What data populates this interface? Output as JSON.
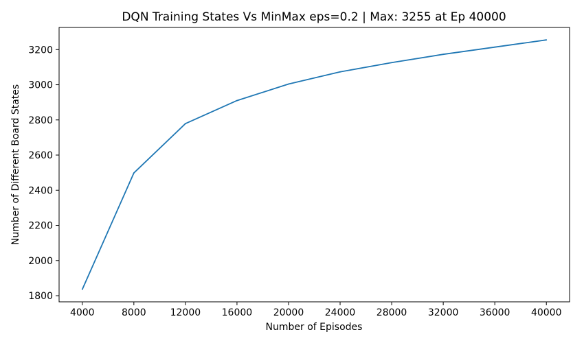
{
  "chart_data": {
    "type": "line",
    "title": "DQN Training States Vs MinMax eps=0.2 | Max: 3255 at Ep 40000",
    "xlabel": "Number of Episodes",
    "ylabel": "Number of Different Board States",
    "x": [
      4000,
      8000,
      12000,
      16000,
      20000,
      24000,
      28000,
      32000,
      36000,
      40000
    ],
    "series": [
      {
        "values": [
          1836,
          2498,
          2779,
          2910,
          3004,
          3073,
          3126,
          3173,
          3214,
          3255
        ],
        "color": "#1f77b4"
      }
    ],
    "xlim": [
      2200,
      41800
    ],
    "ylim": [
      1765,
      3326
    ],
    "x_ticks": [
      4000,
      8000,
      12000,
      16000,
      20000,
      24000,
      28000,
      32000,
      36000,
      40000
    ],
    "x_tick_labels": [
      "4000",
      "8000",
      "12000",
      "16000",
      "20000",
      "24000",
      "28000",
      "32000",
      "36000",
      "40000"
    ],
    "y_ticks": [
      1800,
      2000,
      2200,
      2400,
      2600,
      2800,
      3000,
      3200
    ],
    "y_tick_labels": [
      "1800",
      "2000",
      "2200",
      "2400",
      "2600",
      "2800",
      "3000",
      "3200"
    ],
    "grid": false,
    "legend": "none"
  }
}
